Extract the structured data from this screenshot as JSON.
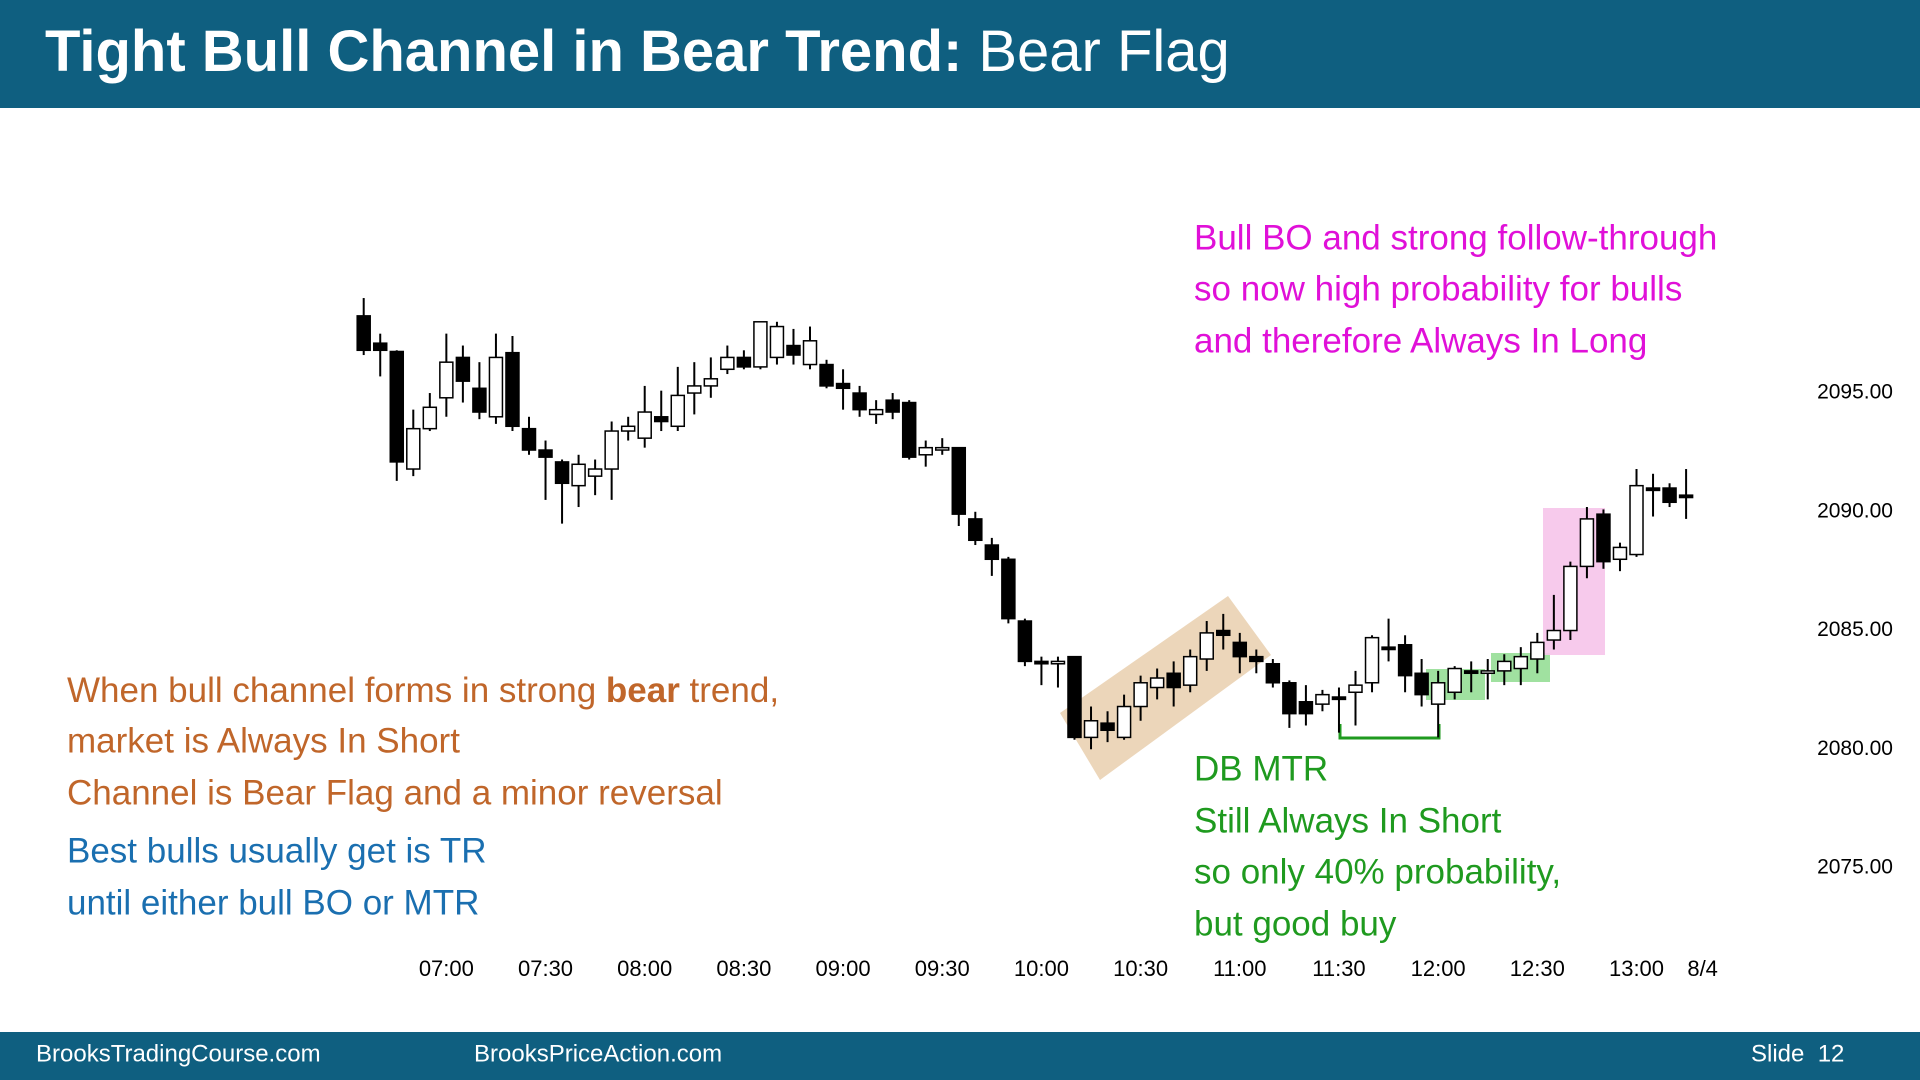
{
  "header": {
    "title_bold": "Tight Bull Channel in Bear Trend:",
    "title_rest": "Bear Flag"
  },
  "chart_data": {
    "type": "candlestick",
    "categories": [
      null,
      null,
      null,
      null,
      null,
      "07:00",
      null,
      null,
      null,
      null,
      null,
      "07:30",
      null,
      null,
      null,
      null,
      null,
      "08:00",
      null,
      null,
      null,
      null,
      null,
      "08:30",
      null,
      null,
      null,
      null,
      null,
      "09:00",
      null,
      null,
      null,
      null,
      null,
      "09:30",
      null,
      null,
      null,
      null,
      null,
      "10:00",
      null,
      null,
      null,
      null,
      null,
      "10:30",
      null,
      null,
      null,
      null,
      null,
      "11:00",
      null,
      null,
      null,
      null,
      null,
      "11:30",
      null,
      null,
      null,
      null,
      null,
      "12:00",
      null,
      null,
      null,
      null,
      null,
      "12:30",
      null,
      null,
      null,
      null,
      null,
      "13:00",
      null,
      null,
      null,
      "8/4"
    ],
    "open": [
      2098.25,
      2097.1,
      2096.75,
      2091.8,
      2093.5,
      2094.8,
      2096.5,
      2095.2,
      2094.0,
      2096.7,
      2093.5,
      2092.6,
      2092.1,
      2091.1,
      2091.5,
      2091.8,
      2093.4,
      2093.1,
      2094.0,
      2093.6,
      2095.0,
      2095.3,
      2096.0,
      2096.5,
      2096.1,
      2096.5,
      2097.0,
      2096.2,
      2096.2,
      2095.4,
      2095.0,
      2094.1,
      2094.7,
      2094.6,
      2092.4,
      2092.6,
      2092.7,
      2089.7,
      2088.6,
      2088.0,
      2085.4,
      2083.7,
      2083.6,
      2083.9,
      2080.5,
      2081.1,
      2080.5,
      2081.8,
      2082.6,
      2083.2,
      2082.7,
      2083.8,
      2085.0,
      2084.5,
      2083.9,
      2083.6,
      2082.8,
      2082.0,
      2081.9,
      2082.2,
      2082.4,
      2082.8,
      2084.3,
      2084.4,
      2083.2,
      2081.9,
      2082.4,
      2083.3,
      2083.2,
      2083.3,
      2083.4,
      2083.8,
      2084.6,
      2085.0,
      2087.7,
      2089.9,
      2088.0,
      2088.2,
      2091.0,
      2091.0,
      2090.7,
      null
    ],
    "high": [
      2099.0,
      2097.5,
      2096.8,
      2094.3,
      2095.0,
      2097.5,
      2097.0,
      2096.3,
      2097.5,
      2097.4,
      2094.0,
      2093.0,
      2092.2,
      2092.4,
      2092.2,
      2093.8,
      2094.0,
      2095.3,
      2095.1,
      2096.1,
      2096.3,
      2096.5,
      2097.0,
      2096.8,
      2098.0,
      2098.0,
      2097.7,
      2097.8,
      2096.4,
      2096.0,
      2095.3,
      2094.7,
      2095.0,
      2094.7,
      2093.0,
      2093.1,
      2092.7,
      2090.0,
      2088.9,
      2088.1,
      2085.5,
      2083.9,
      2083.9,
      2083.9,
      2081.8,
      2081.6,
      2082.3,
      2083.1,
      2083.4,
      2083.7,
      2084.2,
      2085.4,
      2085.7,
      2084.9,
      2084.2,
      2083.8,
      2082.9,
      2082.7,
      2082.5,
      2082.6,
      2083.3,
      2084.8,
      2085.5,
      2084.8,
      2083.8,
      2083.3,
      2083.5,
      2083.7,
      2083.8,
      2084.0,
      2084.3,
      2084.9,
      2086.5,
      2087.9,
      2090.2,
      2090.1,
      2088.7,
      2091.8,
      2091.6,
      2091.2,
      2091.8,
      null
    ],
    "low": [
      2096.6,
      2095.7,
      2091.3,
      2091.5,
      2093.4,
      2094.0,
      2094.6,
      2093.9,
      2093.7,
      2093.4,
      2092.4,
      2090.5,
      2089.5,
      2090.2,
      2090.7,
      2090.5,
      2093.0,
      2092.7,
      2093.4,
      2093.4,
      2094.1,
      2094.8,
      2095.8,
      2096.0,
      2096.0,
      2096.2,
      2096.2,
      2096.0,
      2095.2,
      2094.3,
      2094.0,
      2093.7,
      2093.9,
      2092.2,
      2091.9,
      2092.4,
      2089.4,
      2088.6,
      2087.3,
      2085.3,
      2083.5,
      2082.7,
      2082.6,
      2080.4,
      2080.0,
      2080.3,
      2080.4,
      2081.2,
      2082.1,
      2081.8,
      2082.4,
      2083.3,
      2084.2,
      2083.2,
      2083.2,
      2082.6,
      2080.9,
      2081.0,
      2081.6,
      2080.7,
      2081.0,
      2082.4,
      2083.7,
      2082.4,
      2081.8,
      2080.5,
      2082.1,
      2082.4,
      2082.1,
      2082.7,
      2082.7,
      2083.2,
      2084.2,
      2084.6,
      2087.2,
      2087.6,
      2087.5,
      2088.1,
      2089.8,
      2090.2,
      2089.7,
      null
    ],
    "close": [
      2096.8,
      2096.8,
      2092.1,
      2093.5,
      2094.4,
      2096.3,
      2095.5,
      2094.2,
      2096.5,
      2093.6,
      2092.6,
      2092.3,
      2091.2,
      2092.0,
      2091.8,
      2093.4,
      2093.6,
      2094.2,
      2093.8,
      2094.9,
      2095.3,
      2095.6,
      2096.5,
      2096.1,
      2098.0,
      2097.8,
      2096.6,
      2097.2,
      2095.3,
      2095.2,
      2094.3,
      2094.3,
      2094.2,
      2092.3,
      2092.7,
      2092.7,
      2089.9,
      2088.8,
      2088.0,
      2085.5,
      2083.7,
      2083.6,
      2083.7,
      2080.5,
      2081.2,
      2080.8,
      2081.8,
      2082.8,
      2083.0,
      2082.6,
      2083.9,
      2084.9,
      2084.8,
      2083.9,
      2083.7,
      2082.8,
      2081.5,
      2081.5,
      2082.3,
      2082.1,
      2082.7,
      2084.7,
      2084.2,
      2083.1,
      2082.3,
      2082.8,
      2083.4,
      2083.2,
      2083.3,
      2083.7,
      2083.9,
      2084.5,
      2085.0,
      2087.7,
      2089.7,
      2087.9,
      2088.5,
      2091.1,
      2090.9,
      2090.4,
      2090.6,
      null
    ],
    "up_color": "#ffffff",
    "down_color": "#000000",
    "ylim": [
      2073,
      2100
    ],
    "yticks": [
      {
        "value": 2075,
        "label": "2075.00"
      },
      {
        "value": 2080,
        "label": "2080.00"
      },
      {
        "value": 2085,
        "label": "2085.00"
      },
      {
        "value": 2090,
        "label": "2090.00"
      },
      {
        "value": 2095,
        "label": "2095.00"
      }
    ],
    "annotations": {
      "magenta": [
        "Bull BO and strong follow-through",
        "so now high probability for bulls",
        "and therefore Always In Long"
      ],
      "orange_first": [
        "When bull channel forms in strong ",
        "bear",
        " trend,"
      ],
      "orange": [
        "market is Always In Short",
        "Channel is Bear Flag and a minor reversal"
      ],
      "blue": [
        "Best bulls usually get is TR",
        "until either bull BO or MTR"
      ],
      "green": [
        "DB MTR",
        "Still Always In Short",
        "so only 40% probability,",
        "but good buy"
      ]
    }
  },
  "footer": {
    "left": "BrooksTradingCourse.com",
    "center": "BrooksPriceAction.com",
    "slide": "Slide  12"
  }
}
